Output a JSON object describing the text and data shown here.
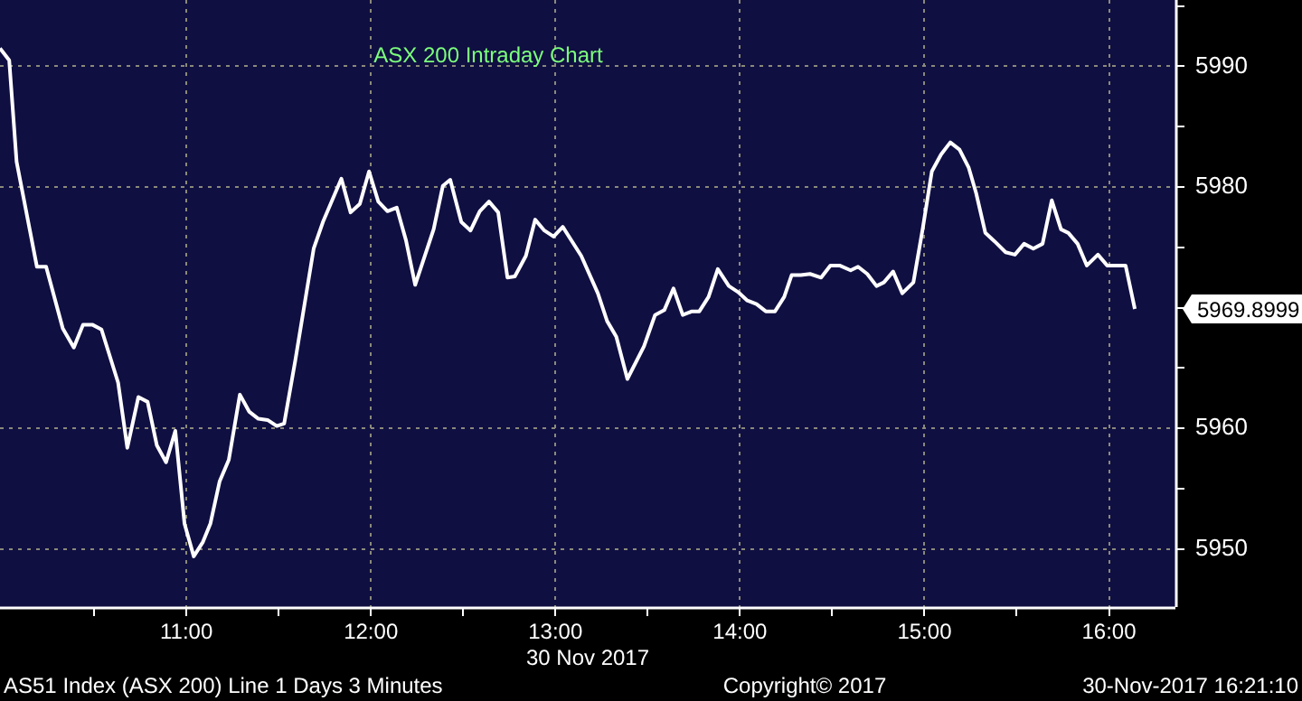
{
  "chart_data": {
    "type": "line",
    "title": "ASX 200 Intraday Chart",
    "xlabel": "30 Nov 2017",
    "x": [
      9.99,
      10.04,
      10.08,
      10.19,
      10.24,
      10.33,
      10.39,
      10.44,
      10.49,
      10.54,
      10.63,
      10.68,
      10.74,
      10.79,
      10.84,
      10.89,
      10.94,
      10.99,
      11.04,
      11.09,
      11.13,
      11.18,
      11.23,
      11.29,
      11.34,
      11.39,
      11.44,
      11.49,
      11.53,
      11.59,
      11.69,
      11.74,
      11.84,
      11.89,
      11.94,
      11.99,
      12.04,
      12.09,
      12.14,
      12.19,
      12.24,
      12.34,
      12.39,
      12.43,
      12.49,
      12.54,
      12.59,
      12.64,
      12.69,
      12.74,
      12.78,
      12.84,
      12.89,
      12.94,
      12.99,
      13.04,
      13.14,
      13.23,
      13.28,
      13.33,
      13.39,
      13.48,
      13.54,
      13.59,
      13.64,
      13.69,
      13.74,
      13.78,
      13.83,
      13.88,
      13.94,
      13.99,
      14.04,
      14.09,
      14.14,
      14.19,
      14.24,
      14.28,
      14.33,
      14.38,
      14.44,
      14.49,
      14.54,
      14.6,
      14.64,
      14.69,
      14.74,
      14.78,
      14.83,
      14.88,
      14.94,
      14.99,
      15.04,
      15.09,
      15.14,
      15.19,
      15.24,
      15.28,
      15.33,
      15.38,
      15.44,
      15.49,
      15.54,
      15.59,
      15.64,
      15.69,
      15.74,
      15.78,
      15.83,
      15.88,
      15.94,
      15.99,
      16.04,
      16.09,
      16.14
    ],
    "series": [
      {
        "color": "#ffffff",
        "values": [
          5991.5,
          5990.5,
          5982.1,
          5973.4,
          5973.4,
          5968.3,
          5966.7,
          5968.6,
          5968.6,
          5968.2,
          5963.8,
          5958.4,
          5962.6,
          5962.2,
          5958.6,
          5957.2,
          5959.8,
          5952.1,
          5949.4,
          5950.6,
          5952.1,
          5955.6,
          5957.4,
          5962.8,
          5961.4,
          5960.8,
          5960.7,
          5960.2,
          5960.4,
          5965.6,
          5974.9,
          5977.1,
          5980.7,
          5977.9,
          5978.6,
          5981.3,
          5978.8,
          5978.0,
          5978.3,
          5975.6,
          5971.9,
          5976.5,
          5980.1,
          5980.6,
          5977.1,
          5976.4,
          5978.0,
          5978.8,
          5977.9,
          5972.5,
          5972.6,
          5974.3,
          5977.3,
          5976.4,
          5975.9,
          5976.7,
          5974.3,
          5971.2,
          5968.9,
          5967.6,
          5964.1,
          5966.8,
          5969.4,
          5969.8,
          5971.6,
          5969.4,
          5969.7,
          5969.7,
          5970.9,
          5973.2,
          5971.8,
          5971.3,
          5970.6,
          5970.3,
          5969.7,
          5969.7,
          5970.9,
          5972.7,
          5972.7,
          5972.8,
          5972.5,
          5973.5,
          5973.5,
          5973.1,
          5973.4,
          5972.8,
          5971.8,
          5972.1,
          5973.0,
          5971.2,
          5972.1,
          5976.5,
          5981.3,
          5982.7,
          5983.7,
          5983.1,
          5981.6,
          5979.5,
          5976.2,
          5975.5,
          5974.6,
          5974.4,
          5975.3,
          5974.9,
          5975.3,
          5978.9,
          5976.5,
          5976.2,
          5975.3,
          5973.5,
          5974.4,
          5973.5,
          5973.5,
          5973.5,
          5969.9
        ]
      }
    ],
    "xlim": [
      9.99,
      16.36
    ],
    "xticks": [
      {
        "value": 10.5,
        "label": null
      },
      {
        "value": 11,
        "label": "11:00"
      },
      {
        "value": 11.5,
        "label": null
      },
      {
        "value": 12,
        "label": "12:00"
      },
      {
        "value": 12.5,
        "label": null
      },
      {
        "value": 13,
        "label": "13:00"
      },
      {
        "value": 13.5,
        "label": null
      },
      {
        "value": 14,
        "label": "14:00"
      },
      {
        "value": 14.5,
        "label": null
      },
      {
        "value": 15,
        "label": "15:00"
      },
      {
        "value": 15.5,
        "label": null
      },
      {
        "value": 16,
        "label": "16:00"
      }
    ],
    "ylim": [
      5945.2,
      5995.5
    ],
    "yticks": [
      5950,
      {
        "value": 5955,
        "label": null
      },
      5960,
      {
        "value": 5965,
        "label": null
      },
      {
        "value": 5970,
        "label": null
      },
      {
        "value": 5975,
        "label": null
      },
      5980,
      {
        "value": 5985,
        "label": null
      },
      5990,
      {
        "value": 5995,
        "label": null
      }
    ],
    "grid": true,
    "legend": false,
    "marker": "none",
    "line_style": "solid",
    "annotations": [
      "5969.8999",
      "AS51 Index (ASX 200) Line 1 Days 3 Minutes",
      "Copyright© 2017",
      "30-Nov-2017 16:21:10"
    ]
  }
}
